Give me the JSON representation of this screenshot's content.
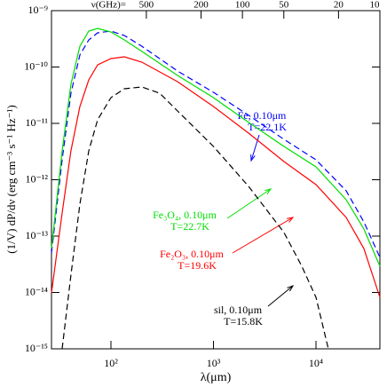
{
  "chart_data": {
    "type": "line",
    "xlabel": "λ(μm)",
    "ylabel": "(1/V) dP/dν (erg cm⁻³ s⁻¹ Hz⁻¹)",
    "xscale": "log",
    "yscale": "log",
    "xlim": [
      26.3,
      42000
    ],
    "ylim": [
      1e-15,
      1e-09
    ],
    "xticks": [
      {
        "value": 100,
        "label": "10²"
      },
      {
        "value": 1000,
        "label": "10³"
      },
      {
        "value": 10000,
        "label": "10⁴"
      }
    ],
    "yticks": [
      {
        "value": 1e-15,
        "label": "10⁻¹⁵"
      },
      {
        "value": 1e-14,
        "label": "10⁻¹⁴"
      },
      {
        "value": 1e-13,
        "label": "10⁻¹³"
      },
      {
        "value": 1e-12,
        "label": "10⁻¹²"
      },
      {
        "value": 1e-11,
        "label": "10⁻¹¹"
      },
      {
        "value": 1e-10,
        "label": "10⁻¹⁰"
      },
      {
        "value": 1e-09,
        "label": "10⁻⁹"
      }
    ],
    "x2label": "ν(GHz)=",
    "x2lim": [
      2450,
      10
    ],
    "x2ticks": [
      500,
      200,
      100,
      50,
      20,
      10
    ],
    "series": [
      {
        "name": "Fe, 0.10μm",
        "temperature": "T=22.1K",
        "color": "#0000ff",
        "dashed": true,
        "x": [
          26.3,
          33.4,
          40.7,
          49.8,
          60.8,
          74.2,
          100,
          135,
          200,
          446,
          1000,
          2200,
          4870,
          10000,
          19700,
          29300,
          42000
        ],
        "values": [
          5.02e-14,
          2.26e-12,
          3.43e-11,
          1.63e-10,
          3.02e-10,
          4.04e-10,
          4.34e-10,
          3.62e-10,
          2.34e-10,
          8.49e-11,
          3.56e-11,
          1.39e-11,
          5.21e-12,
          2.26e-12,
          6.35e-13,
          1.79e-13,
          4.19e-14
        ]
      },
      {
        "name": "Fe₃O₄, 0.10μm",
        "temperature": "T=22.7K",
        "color": "#00dd00",
        "dashed": false,
        "x": [
          26.3,
          33.4,
          40.7,
          49.8,
          60.8,
          74.2,
          100,
          135,
          200,
          446,
          1000,
          2200,
          4870,
          10000,
          19700,
          29300,
          42000
        ],
        "values": [
          6.03e-14,
          3.25e-12,
          4.93e-11,
          2.34e-10,
          4.34e-10,
          4.84e-10,
          4.19e-10,
          3.02e-10,
          1.89e-10,
          7.08e-11,
          2.86e-11,
          1.04e-11,
          3.9e-12,
          1.69e-12,
          4.43e-13,
          1.34e-13,
          2.92e-14
        ]
      },
      {
        "name": "Fe₂O₃, 0.10μm",
        "temperature": "T=19.6K",
        "color": "#ff0000",
        "dashed": false,
        "x": [
          26.3,
          33.4,
          40.7,
          49.8,
          60.8,
          74.2,
          100,
          135,
          200,
          446,
          1000,
          2200,
          4870,
          10000,
          19700,
          29300,
          42000
        ],
        "values": [
          9.82e-15,
          2.56e-13,
          3.25e-12,
          1.99e-11,
          5.91e-11,
          1.09e-10,
          1.41e-10,
          1.52e-10,
          1.22e-10,
          5.5e-11,
          1.99e-11,
          6.71e-12,
          2.1e-12,
          8.19e-13,
          2.14e-13,
          6.03e-14,
          8.18e-15
        ]
      },
      {
        "name": "sil, 0.10μm",
        "temperature": "T=15.8K",
        "color": "#000000",
        "dashed": true,
        "x": [
          33.4,
          40.7,
          49.8,
          60.8,
          74.2,
          100,
          135,
          200,
          299,
          446,
          1000,
          2200,
          4870,
          7270,
          10000,
          13200
        ],
        "values": [
          1e-15,
          2.03e-14,
          3.69e-13,
          3.25e-12,
          1.16e-11,
          2.86e-11,
          4.11e-11,
          4.42e-11,
          3.43e-11,
          1.66e-11,
          3.9e-12,
          7.62e-13,
          1.16e-13,
          2.92e-14,
          8.18e-15,
          1e-15
        ]
      }
    ]
  }
}
